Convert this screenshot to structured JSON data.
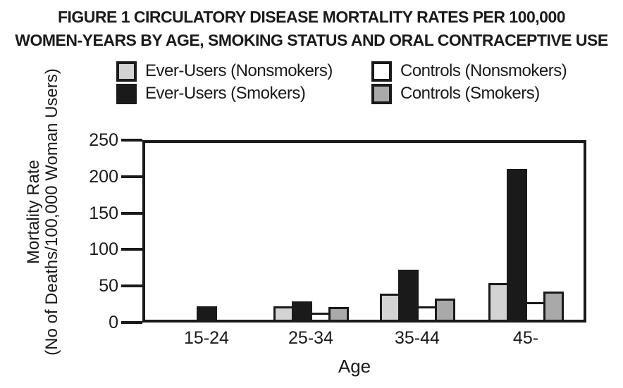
{
  "figure": {
    "title_line1": "FIGURE 1 CIRCULATORY DISEASE MORTALITY RATES PER 100,000",
    "title_line2": "WOMEN-YEARS BY AGE, SMOKING STATUS AND ORAL CONTRACEPTIVE USE"
  },
  "legend": {
    "order": [
      0,
      2,
      1,
      3
    ]
  },
  "chart_data": {
    "type": "bar",
    "title": "FIGURE 1 CIRCULATORY DISEASE MORTALITY RATES PER 100,000 WOMEN-YEARS BY AGE, SMOKING STATUS AND ORAL CONTRACEPTIVE USE",
    "categories": [
      "15-24",
      "25-34",
      "35-44",
      "45-"
    ],
    "series": [
      {
        "name": "Ever-Users (Nonsmokers)",
        "color": "#d3d3d3",
        "values": [
          0,
          16,
          34,
          49
        ]
      },
      {
        "name": "Ever-Users (Smokers)",
        "color": "#1a1a1a",
        "values": [
          16,
          23,
          68,
          210
        ]
      },
      {
        "name": "Controls (Nonsmokers)",
        "color": "#ffffff",
        "values": [
          0,
          7,
          16,
          22
        ]
      },
      {
        "name": "Controls (Smokers)",
        "color": "#a9a9a9",
        "values": [
          0,
          15,
          27,
          37
        ]
      }
    ],
    "xlabel": "Age",
    "ylabel_line1": "Mortality Rate",
    "ylabel_line2": "(No of Deaths/100,000 Woman Users)",
    "ylim": [
      0,
      250
    ],
    "yticks": [
      250,
      200,
      150,
      100,
      50,
      0
    ],
    "grid": false,
    "legend_position": "top",
    "bar_outline_color": "#1a1a1a",
    "note_zero_bars": "bars with value 0 are not drawn"
  }
}
